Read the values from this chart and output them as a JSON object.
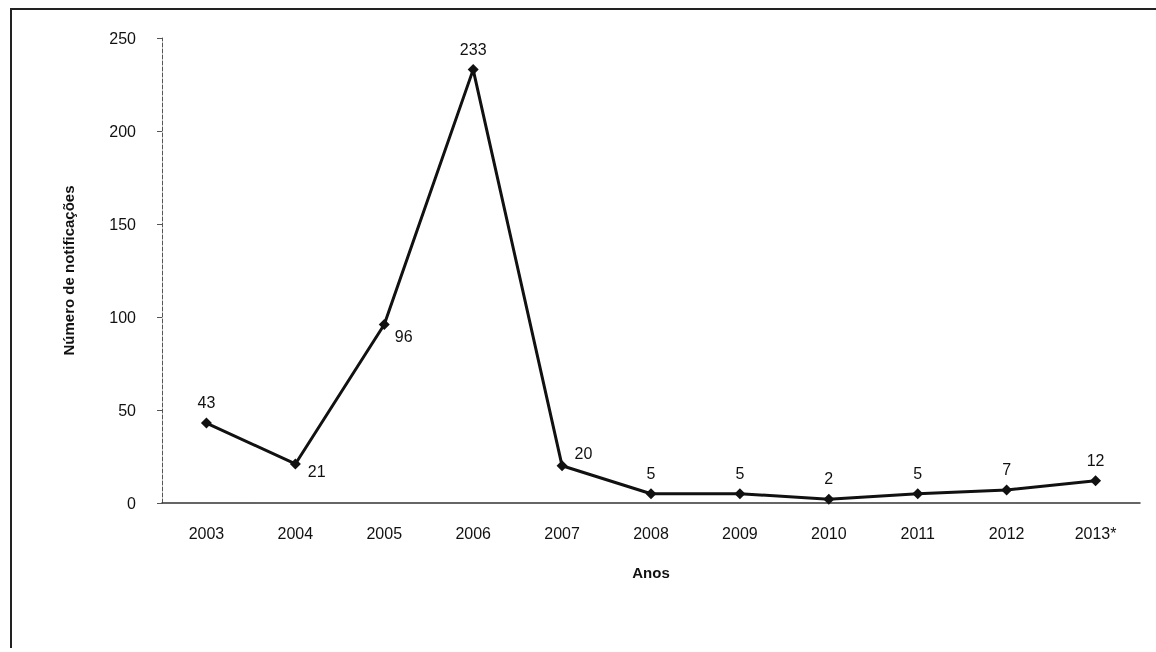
{
  "chart_data": {
    "type": "line",
    "xlabel": "Anos",
    "ylabel": "Número de notificações",
    "categories": [
      "2003",
      "2004",
      "2005",
      "2006",
      "2007",
      "2008",
      "2009",
      "2010",
      "2011",
      "2012",
      "2013*"
    ],
    "values": [
      43,
      21,
      96,
      233,
      20,
      5,
      5,
      2,
      5,
      7,
      12
    ],
    "color": "#111111",
    "ylim": [
      0,
      250
    ],
    "yticks": [
      0,
      50,
      100,
      150,
      200,
      250
    ],
    "grid": false,
    "marker": "diamond",
    "line_style": "solid",
    "data_labels": true
  }
}
